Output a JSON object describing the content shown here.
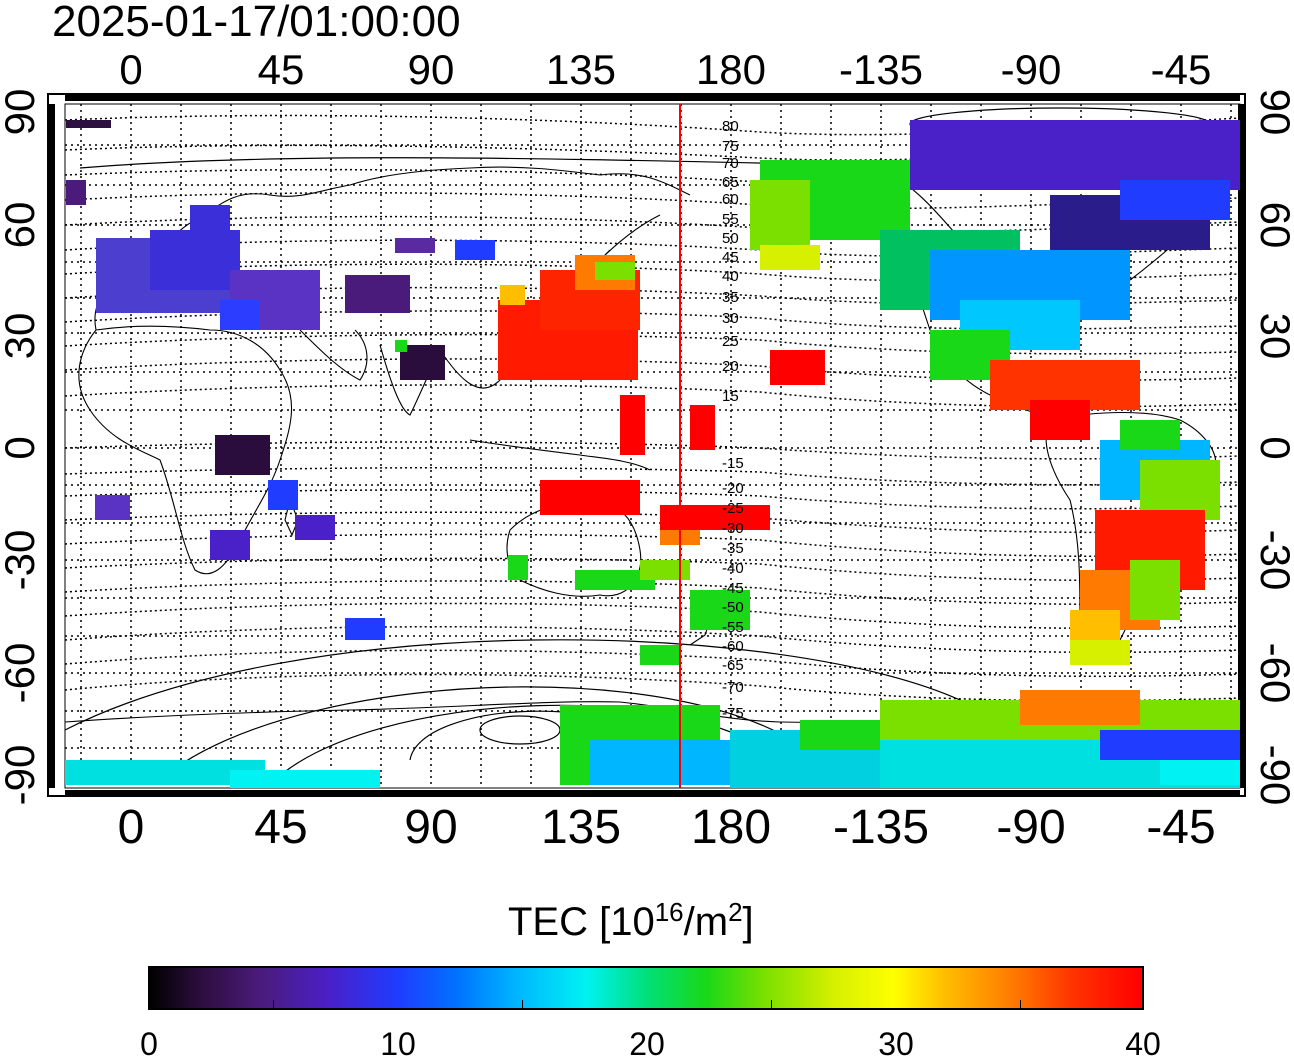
{
  "timestamp": "2025-01-17/01:00:00",
  "map": {
    "top_lon_labels": [
      "0",
      "45",
      "90",
      "135",
      "180",
      "-135",
      "-90",
      "-45"
    ],
    "bottom_lon_labels": [
      "0",
      "45",
      "90",
      "135",
      "180",
      "-135",
      "-90",
      "-45"
    ],
    "left_lat_labels": [
      "90",
      "60",
      "30",
      "0",
      "-30",
      "-60",
      "-90"
    ],
    "right_lat_labels": [
      "90",
      "60",
      "30",
      "0",
      "-30",
      "-60",
      "-90"
    ],
    "contour_labels_north": [
      "80",
      "75",
      "70",
      "65",
      "60",
      "55",
      "50",
      "45",
      "40",
      "35",
      "30",
      "25",
      "20",
      "15"
    ],
    "contour_labels_south": [
      "-15",
      "-20",
      "-25",
      "-30",
      "-35",
      "-40",
      "-45",
      "-50",
      "-55",
      "-60",
      "-65",
      "-70",
      "-75"
    ],
    "meridian_marker_color": "#ff0000"
  },
  "colorbar": {
    "title_prefix": "TEC  [10",
    "title_exp1": "16",
    "title_mid": "/m",
    "title_exp2": "2",
    "title_suffix": "]",
    "min": 0,
    "max": 40,
    "tick_labels": [
      "0",
      "10",
      "20",
      "30",
      "40"
    ]
  }
}
